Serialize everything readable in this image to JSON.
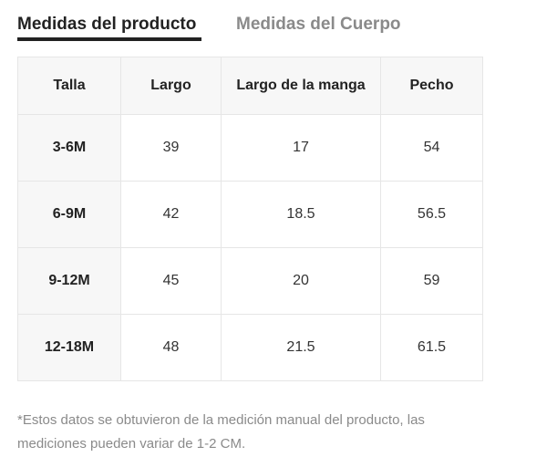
{
  "tabs": {
    "product": "Medidas del producto",
    "body": "Medidas del Cuerpo"
  },
  "table": {
    "headers": [
      "Talla",
      "Largo",
      "Largo de la manga",
      "Pecho"
    ],
    "rows": [
      [
        "3-6M",
        "39",
        "17",
        "54"
      ],
      [
        "6-9M",
        "42",
        "18.5",
        "56.5"
      ],
      [
        "9-12M",
        "45",
        "20",
        "59"
      ],
      [
        "12-18M",
        "48",
        "21.5",
        "61.5"
      ]
    ]
  },
  "footnote": "*Estos datos se obtuvieron de la medición manual del producto, las mediciones pueden variar de 1-2 CM.",
  "colors": {
    "active_tab": "#222222",
    "inactive_tab": "#8a8a8a",
    "header_bg": "#f7f7f7",
    "border": "#e6e6e6"
  }
}
